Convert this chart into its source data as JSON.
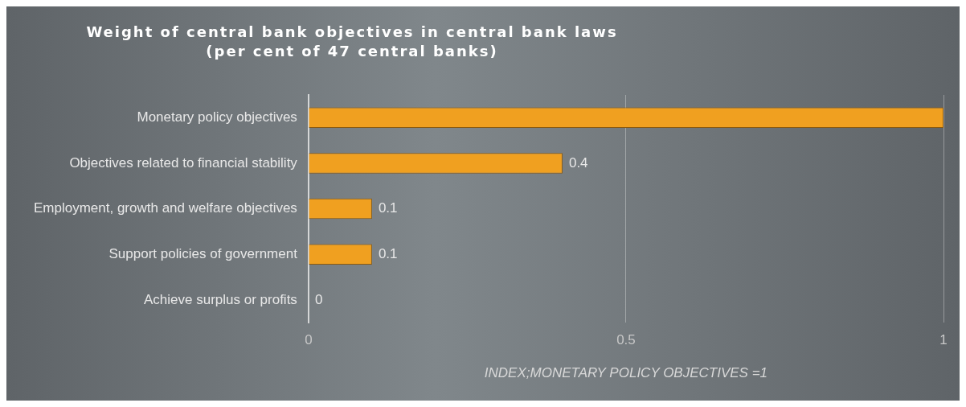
{
  "chart_data": {
    "type": "bar",
    "orientation": "horizontal",
    "title": "Weight of central bank objectives in central bank laws\n(per cent of 47 central banks)",
    "xlabel": "INDEX;MONETARY POLICY OBJECTIVES =1",
    "categories": [
      "Monetary policy objectives",
      "Objectives related to financial stability",
      "Employment, growth and welfare objectives",
      "Support policies of government",
      "Achieve surplus or profits"
    ],
    "values": [
      1,
      0.4,
      0.1,
      0.1,
      0
    ],
    "value_labels": [
      null,
      "0.4",
      "0.1",
      "0.1",
      "0"
    ],
    "color": "#f0a020",
    "xlim": [
      0,
      1
    ],
    "xticks": [
      0,
      0.5,
      1
    ],
    "grid": "x",
    "legend": false
  }
}
